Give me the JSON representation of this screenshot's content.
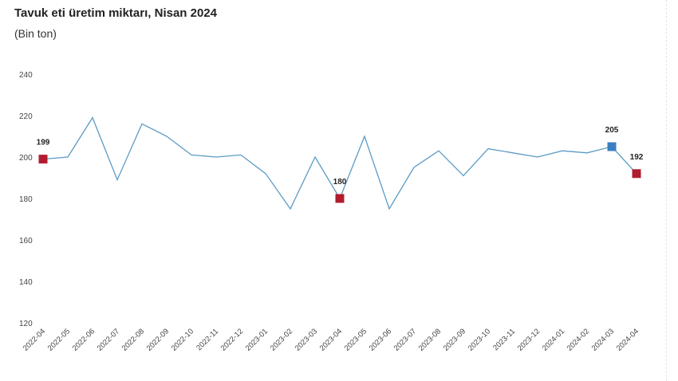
{
  "chart_data": {
    "type": "line",
    "title": "Tavuk eti üretim miktarı, Nisan 2024",
    "subtitle": "(Bin ton)",
    "xlabel": "",
    "ylabel": "",
    "ylim": [
      120,
      240
    ],
    "yticks": [
      "120",
      "140",
      "160",
      "180",
      "200",
      "220",
      "240"
    ],
    "grid": false,
    "categories": [
      "2022-04",
      "2022-05",
      "2022-06",
      "2022-07",
      "2022-08",
      "2022-09",
      "2022-10",
      "2022-11",
      "2022-12",
      "2023-01",
      "2023-02",
      "2023-03",
      "2023-04",
      "2023-05",
      "2023-06",
      "2023-07",
      "2023-08",
      "2023-09",
      "2023-10",
      "2023-11",
      "2023-12",
      "2024-01",
      "2024-02",
      "2024-03",
      "2024-04"
    ],
    "series": [
      {
        "values": [
          199,
          200,
          219,
          189,
          216,
          210,
          201,
          200,
          201,
          192,
          175,
          200,
          180,
          210,
          175,
          195,
          203,
          191,
          204,
          202,
          200,
          203,
          202,
          205,
          192
        ]
      }
    ],
    "line_color": "#5b9bc4",
    "highlight_markers": [
      {
        "index": 0,
        "label": "199",
        "color": "#b01c2e"
      },
      {
        "index": 12,
        "label": "180",
        "color": "#b01c2e"
      },
      {
        "index": 23,
        "label": "205",
        "color": "#3a7fc1"
      },
      {
        "index": 24,
        "label": "192",
        "color": "#b01c2e"
      }
    ]
  }
}
